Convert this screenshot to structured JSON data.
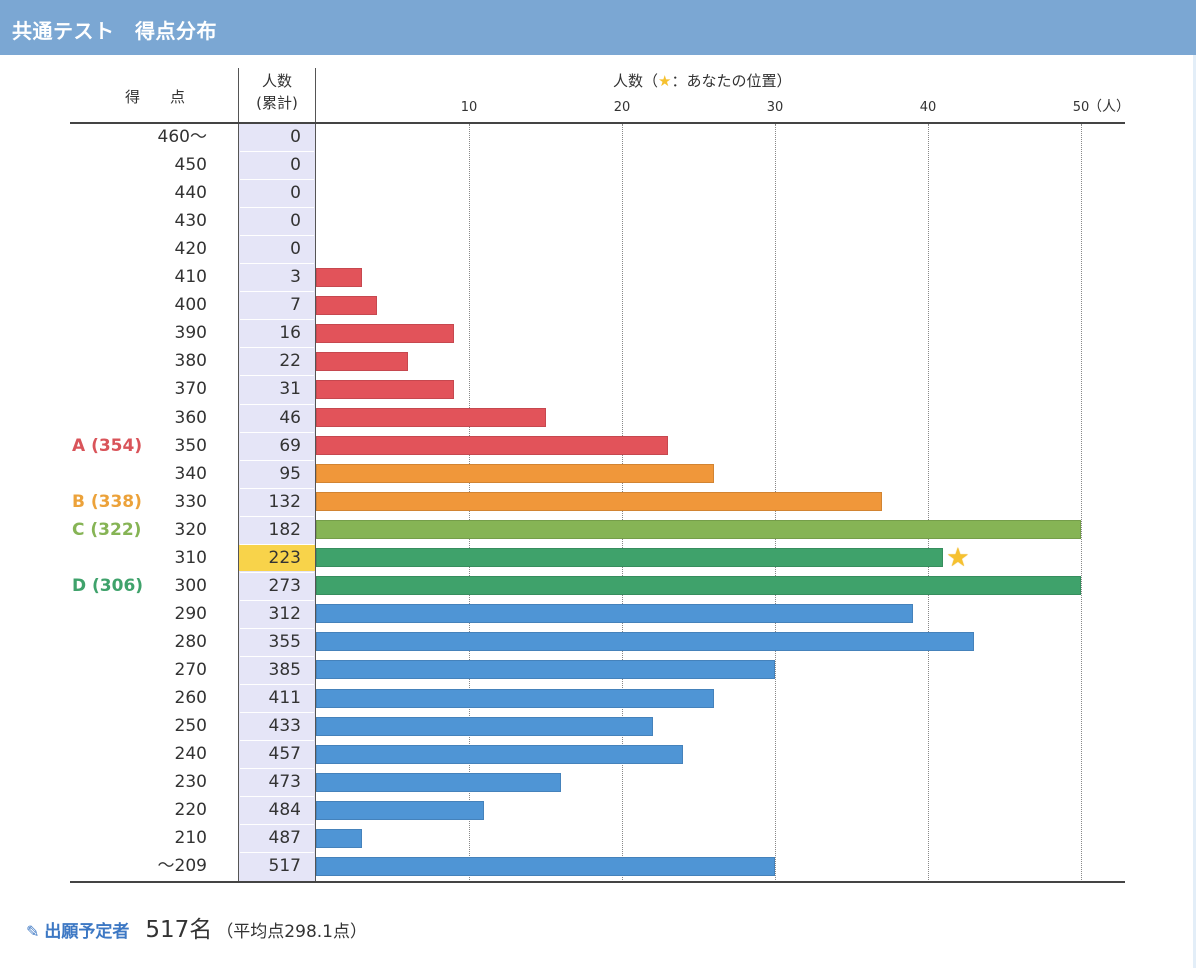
{
  "header": {
    "title": "共通テスト　得点分布"
  },
  "table_headers": {
    "score": "得　　点",
    "count_line1": "人数",
    "count_line2": "(累計)"
  },
  "chart_data": {
    "type": "bar",
    "orientation": "horizontal",
    "title_prefix": "人数（",
    "title_star": "★",
    "title_suffix": "：あなたの位置）",
    "xlabel": "人数",
    "x_unit": "（人）",
    "xlim": [
      0,
      50
    ],
    "xticks": [
      "10",
      "20",
      "30",
      "40",
      "50"
    ],
    "grid": true,
    "categories": [
      "460〜",
      "450",
      "440",
      "430",
      "420",
      "410",
      "400",
      "390",
      "380",
      "370",
      "360",
      "350",
      "340",
      "330",
      "320",
      "310",
      "300",
      "290",
      "280",
      "270",
      "260",
      "250",
      "240",
      "230",
      "220",
      "210",
      "〜209"
    ],
    "cumulative": [
      "0",
      "0",
      "0",
      "0",
      "0",
      "3",
      "7",
      "16",
      "22",
      "31",
      "46",
      "69",
      "95",
      "132",
      "182",
      "223",
      "273",
      "312",
      "355",
      "385",
      "411",
      "433",
      "457",
      "473",
      "484",
      "487",
      "517"
    ],
    "values": [
      0,
      0,
      0,
      0,
      0,
      3,
      4,
      9,
      6,
      9,
      15,
      23,
      26,
      37,
      50,
      41,
      50,
      39,
      43,
      30,
      26,
      22,
      24,
      16,
      11,
      3,
      30
    ],
    "bar_colors": [
      "#e2535a",
      "#e2535a",
      "#e2535a",
      "#e2535a",
      "#e2535a",
      "#e2535a",
      "#e2535a",
      "#e2535a",
      "#e2535a",
      "#e2535a",
      "#e2535a",
      "#e2535a",
      "#f0973a",
      "#f0973a",
      "#86b455",
      "#3fa26b",
      "#3fa26b",
      "#4f95d5",
      "#4f95d5",
      "#4f95d5",
      "#4f95d5",
      "#4f95d5",
      "#4f95d5",
      "#4f95d5",
      "#4f95d5",
      "#4f95d5",
      "#4f95d5"
    ],
    "your_position_index": 15,
    "grade_lines": [
      {
        "label": "A (354)",
        "row_index": 11,
        "color": "#d9545a"
      },
      {
        "label": "B (338)",
        "row_index": 13,
        "color": "#eca23a"
      },
      {
        "label": "C (322)",
        "row_index": 14,
        "color": "#86b455"
      },
      {
        "label": "D (306)",
        "row_index": 16,
        "color": "#3fa26b"
      }
    ]
  },
  "footer": {
    "label": "出願予定者",
    "count": "517名",
    "average": "（平均点298.1点）"
  }
}
